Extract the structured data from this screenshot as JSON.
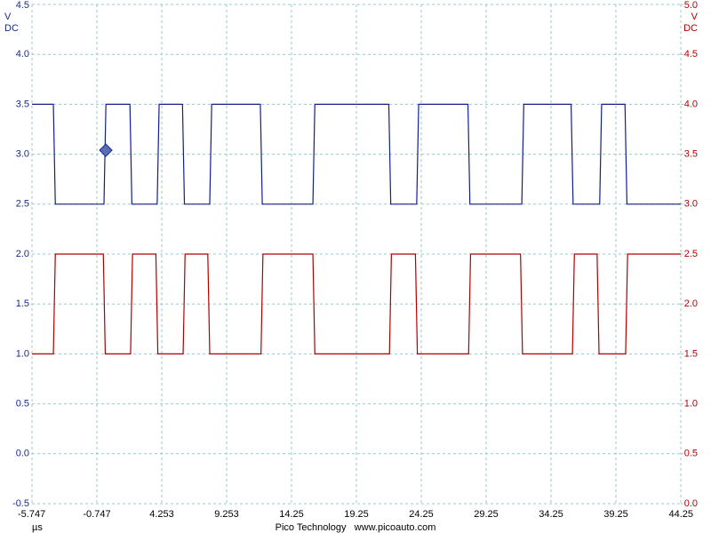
{
  "chart_data": {
    "type": "line",
    "y_unit": "V",
    "y_coupling": "DC",
    "y2_unit": "V",
    "y2_coupling": "DC",
    "x_label": "µs",
    "footer": "Pico Technology   www.picoauto.com",
    "xlim": [
      -5.747,
      44.25
    ],
    "xticks": [
      -5.747,
      -0.747,
      4.253,
      9.253,
      14.25,
      19.25,
      24.25,
      29.25,
      34.25,
      39.25,
      44.25
    ],
    "ylim": [
      -0.5,
      4.5
    ],
    "yticks": [
      -0.5,
      {
        "value": 0,
        "label": "0.0"
      },
      0.5,
      {
        "value": 1,
        "label": "1.0"
      },
      1.5,
      {
        "value": 2,
        "label": "2.0"
      },
      2.5,
      {
        "value": 3,
        "label": "3.0"
      },
      3.5,
      {
        "value": 4,
        "label": "4.0"
      },
      4.5
    ],
    "y2lim": [
      0,
      5
    ],
    "y2ticks": [
      {
        "value": 0,
        "label": "0.0"
      },
      0.5,
      {
        "value": 1,
        "label": "1.0"
      },
      1.5,
      {
        "value": 2,
        "label": "2.0"
      },
      2.5,
      {
        "value": 3,
        "label": "3.0"
      },
      3.5,
      {
        "value": 4,
        "label": "4.0"
      },
      4.5,
      {
        "value": 5,
        "label": "5.0"
      }
    ],
    "y_color": "#1a2a8c",
    "y2_color": "#b00000",
    "grid": true,
    "grid_color": "#9cc8c8",
    "series": [
      {
        "color": "#10208c",
        "axis": "y",
        "x": [
          -5.747,
          -4.1,
          -3.95,
          -0.2,
          -0.05,
          1.8,
          1.95,
          3.9,
          4.05,
          5.85,
          6.0,
          7.95,
          8.1,
          11.85,
          12.0,
          15.9,
          16.05,
          21.75,
          21.9,
          23.9,
          24.05,
          27.85,
          28.0,
          32.0,
          32.15,
          35.8,
          35.95,
          38.0,
          38.15,
          39.95,
          40.1,
          44.25
        ],
        "values": [
          3.5,
          3.5,
          2.5,
          2.5,
          3.5,
          3.5,
          2.5,
          2.5,
          3.5,
          3.5,
          2.5,
          2.5,
          3.5,
          3.5,
          2.5,
          2.5,
          3.5,
          3.5,
          2.5,
          2.5,
          3.5,
          3.5,
          2.5,
          2.5,
          3.5,
          3.5,
          2.5,
          2.5,
          3.5,
          3.5,
          2.5,
          2.5
        ]
      },
      {
        "color": "#b00000",
        "axis": "y2",
        "x": [
          -5.747,
          -4.1,
          -3.95,
          -0.25,
          -0.1,
          1.85,
          2.0,
          3.8,
          3.95,
          5.9,
          6.05,
          7.8,
          7.95,
          11.9,
          12.05,
          15.9,
          16.05,
          21.8,
          21.95,
          23.8,
          23.95,
          27.9,
          28.05,
          31.9,
          32.05,
          35.9,
          36.05,
          37.8,
          37.95,
          40.0,
          40.15,
          44.25
        ],
        "values": [
          1.5,
          1.5,
          2.5,
          2.5,
          1.5,
          1.5,
          2.5,
          2.5,
          1.5,
          1.5,
          2.5,
          2.5,
          1.5,
          1.5,
          2.5,
          2.5,
          1.5,
          1.5,
          2.5,
          2.5,
          1.5,
          1.5,
          2.5,
          2.5,
          1.5,
          1.5,
          2.5,
          2.5,
          1.5,
          1.5,
          2.5,
          2.5
        ]
      }
    ],
    "cursor": {
      "x": -0.06,
      "y": 3.04,
      "color": "#5a6eb4"
    }
  }
}
